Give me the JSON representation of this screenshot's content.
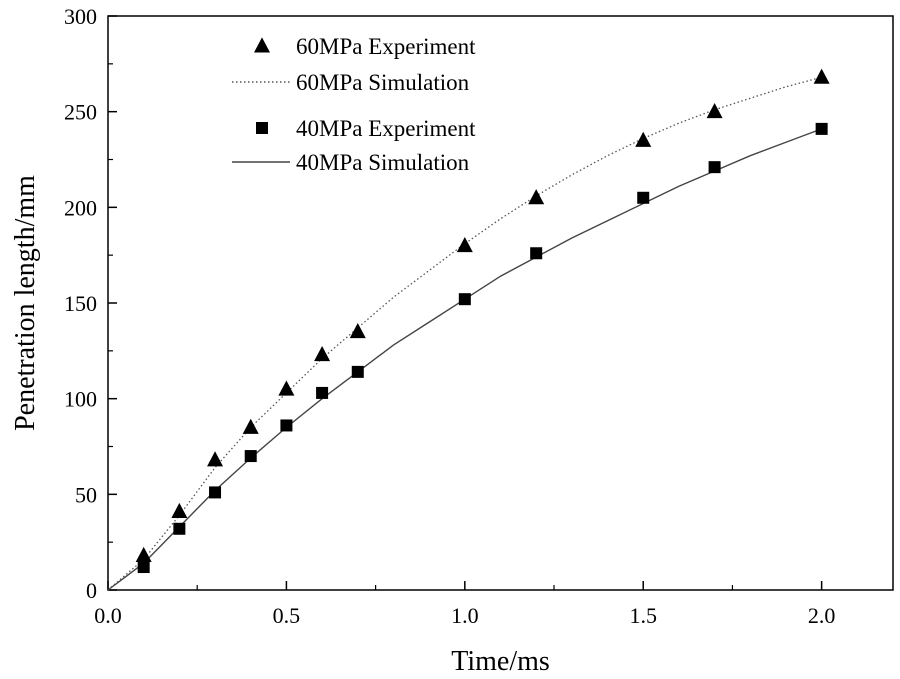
{
  "chart_data": {
    "type": "scatter",
    "title": "",
    "xlabel": "Time/ms",
    "ylabel": "Penetration length/mm",
    "xlim": [
      0.0,
      2.2
    ],
    "ylim": [
      0,
      300
    ],
    "xticks": [
      0.0,
      0.5,
      1.0,
      1.5,
      2.0
    ],
    "xtick_labels": [
      "0.0",
      "0.5",
      "1.0",
      "1.5",
      "2.0"
    ],
    "yticks": [
      0,
      50,
      100,
      150,
      200,
      250,
      300
    ],
    "ytick_labels": [
      "0",
      "50",
      "100",
      "150",
      "200",
      "250",
      "300"
    ],
    "grid": false,
    "legend_position": "top-left",
    "series": [
      {
        "name": "60MPa Experiment",
        "kind": "marker",
        "marker": "triangle",
        "color": "#000000",
        "x": [
          0.1,
          0.2,
          0.3,
          0.4,
          0.5,
          0.6,
          0.7,
          1.0,
          1.2,
          1.5,
          1.7,
          2.0
        ],
        "y": [
          18,
          41,
          68,
          85,
          105,
          123,
          135,
          180,
          205,
          235,
          250,
          268
        ]
      },
      {
        "name": "60MPa Simulation",
        "kind": "line",
        "style": "dotted",
        "color": "#555555",
        "x": [
          0.0,
          0.1,
          0.2,
          0.3,
          0.4,
          0.5,
          0.6,
          0.7,
          0.8,
          0.9,
          1.0,
          1.1,
          1.2,
          1.3,
          1.4,
          1.5,
          1.6,
          1.7,
          1.8,
          1.9,
          2.0
        ],
        "y": [
          0,
          16,
          39,
          64,
          85,
          103,
          121,
          137,
          153,
          167,
          181,
          194,
          206,
          217,
          227,
          236,
          244,
          251,
          257,
          263,
          268
        ]
      },
      {
        "name": "40MPa Experiment",
        "kind": "marker",
        "marker": "square",
        "color": "#000000",
        "x": [
          0.1,
          0.2,
          0.3,
          0.4,
          0.5,
          0.6,
          0.7,
          1.0,
          1.2,
          1.5,
          1.7,
          2.0
        ],
        "y": [
          12,
          32,
          51,
          70,
          86,
          103,
          114,
          152,
          176,
          205,
          221,
          241
        ]
      },
      {
        "name": "40MPa Simulation",
        "kind": "line",
        "style": "solid",
        "color": "#444444",
        "x": [
          0.0,
          0.1,
          0.2,
          0.3,
          0.4,
          0.5,
          0.6,
          0.7,
          0.8,
          0.9,
          1.0,
          1.1,
          1.2,
          1.3,
          1.4,
          1.5,
          1.6,
          1.7,
          1.8,
          1.9,
          2.0
        ],
        "y": [
          0,
          14,
          33,
          52,
          69,
          85,
          100,
          114,
          128,
          140,
          152,
          164,
          174,
          184,
          193,
          202,
          211,
          219,
          227,
          234,
          241
        ]
      }
    ]
  }
}
